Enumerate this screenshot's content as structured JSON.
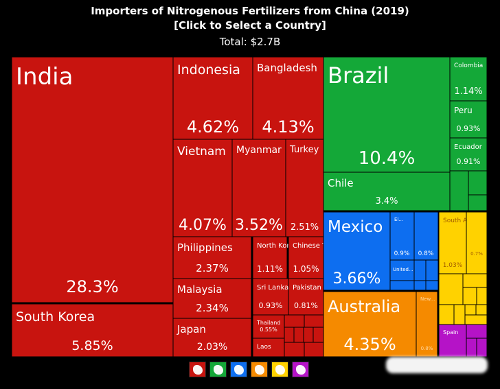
{
  "header": {
    "title": "Importers of Nitrogenous Fertilizers from China (2019)",
    "subtitle": "[Click to Select a Country]",
    "total": "Total: $2.7B"
  },
  "colors": {
    "asia": "#c8140f",
    "south_america": "#14a838",
    "north_america": "#0d6ef0",
    "oceania": "#f58a00",
    "africa": "#ffd200",
    "europe": "#b513c7"
  },
  "legend": [
    {
      "region": "asia",
      "icon": "asia-map-icon",
      "color": "#c8140f"
    },
    {
      "region": "south-america",
      "icon": "south-america-map-icon",
      "color": "#14a838"
    },
    {
      "region": "north-america",
      "icon": "north-america-map-icon",
      "color": "#0d6ef0"
    },
    {
      "region": "oceania",
      "icon": "oceania-map-icon",
      "color": "#f58a00"
    },
    {
      "region": "africa",
      "icon": "africa-map-icon",
      "color": "#ffd200"
    },
    {
      "region": "europe",
      "icon": "europe-map-icon",
      "color": "#b513c7"
    }
  ],
  "chart_data": {
    "type": "treemap",
    "unit": "share of total import value (%)",
    "items": [
      {
        "name": "India",
        "value": 28.3,
        "label": "28.3%",
        "group": "asia"
      },
      {
        "name": "South Korea",
        "value": 5.85,
        "label": "5.85%",
        "group": "asia"
      },
      {
        "name": "Indonesia",
        "value": 4.62,
        "label": "4.62%",
        "group": "asia"
      },
      {
        "name": "Bangladesh",
        "value": 4.13,
        "label": "4.13%",
        "group": "asia"
      },
      {
        "name": "Vietnam",
        "value": 4.07,
        "label": "4.07%",
        "group": "asia"
      },
      {
        "name": "Myanmar",
        "value": 3.52,
        "label": "3.52%",
        "group": "asia"
      },
      {
        "name": "Turkey",
        "value": 2.51,
        "label": "2.51%",
        "group": "asia"
      },
      {
        "name": "Philippines",
        "value": 2.37,
        "label": "2.37%",
        "group": "asia"
      },
      {
        "name": "Malaysia",
        "value": 2.34,
        "label": "2.34%",
        "group": "asia"
      },
      {
        "name": "Japan",
        "value": 2.03,
        "label": "2.03%",
        "group": "asia"
      },
      {
        "name": "North Korea",
        "value": 1.11,
        "label": "1.11%",
        "group": "asia"
      },
      {
        "name": "Chinese Taipei",
        "value": 1.05,
        "label": "1.05%",
        "group": "asia"
      },
      {
        "name": "Sri Lanka",
        "value": 0.93,
        "label": "0.93%",
        "group": "asia"
      },
      {
        "name": "Pakistan",
        "value": 0.81,
        "label": "0.81%",
        "group": "asia"
      },
      {
        "name": "Thailand",
        "value": 0.55,
        "label": "0.55%",
        "group": "asia"
      },
      {
        "name": "Laos",
        "value": null,
        "label": "",
        "group": "asia"
      },
      {
        "name": "Brazil",
        "value": 10.4,
        "label": "10.4%",
        "group": "south_america"
      },
      {
        "name": "Chile",
        "value": 3.4,
        "label": "3.4%",
        "group": "south_america"
      },
      {
        "name": "Colombia",
        "value": 1.14,
        "label": "1.14%",
        "group": "south_america"
      },
      {
        "name": "Peru",
        "value": 0.93,
        "label": "0.93%",
        "group": "south_america"
      },
      {
        "name": "Ecuador",
        "value": 0.91,
        "label": "0.91%",
        "group": "south_america"
      },
      {
        "name": "Mexico",
        "value": 3.66,
        "label": "3.66%",
        "group": "north_america"
      },
      {
        "name": "El...",
        "value": 0.9,
        "label": "0.9%",
        "group": "north_america"
      },
      {
        "name": "",
        "value": 0.8,
        "label": "0.8%",
        "group": "north_america"
      },
      {
        "name": "United...",
        "value": null,
        "label": "",
        "group": "north_america"
      },
      {
        "name": "Australia",
        "value": 4.35,
        "label": "4.35%",
        "group": "oceania"
      },
      {
        "name": "New...",
        "value": 0.8,
        "label": "0.8%",
        "group": "oceania"
      },
      {
        "name": "South Africa",
        "value": 1.03,
        "label": "1.03%",
        "group": "africa"
      },
      {
        "name": "",
        "value": 0.7,
        "label": "0.7%",
        "group": "africa"
      },
      {
        "name": "Spain",
        "value": null,
        "label": "",
        "group": "europe"
      }
    ]
  }
}
